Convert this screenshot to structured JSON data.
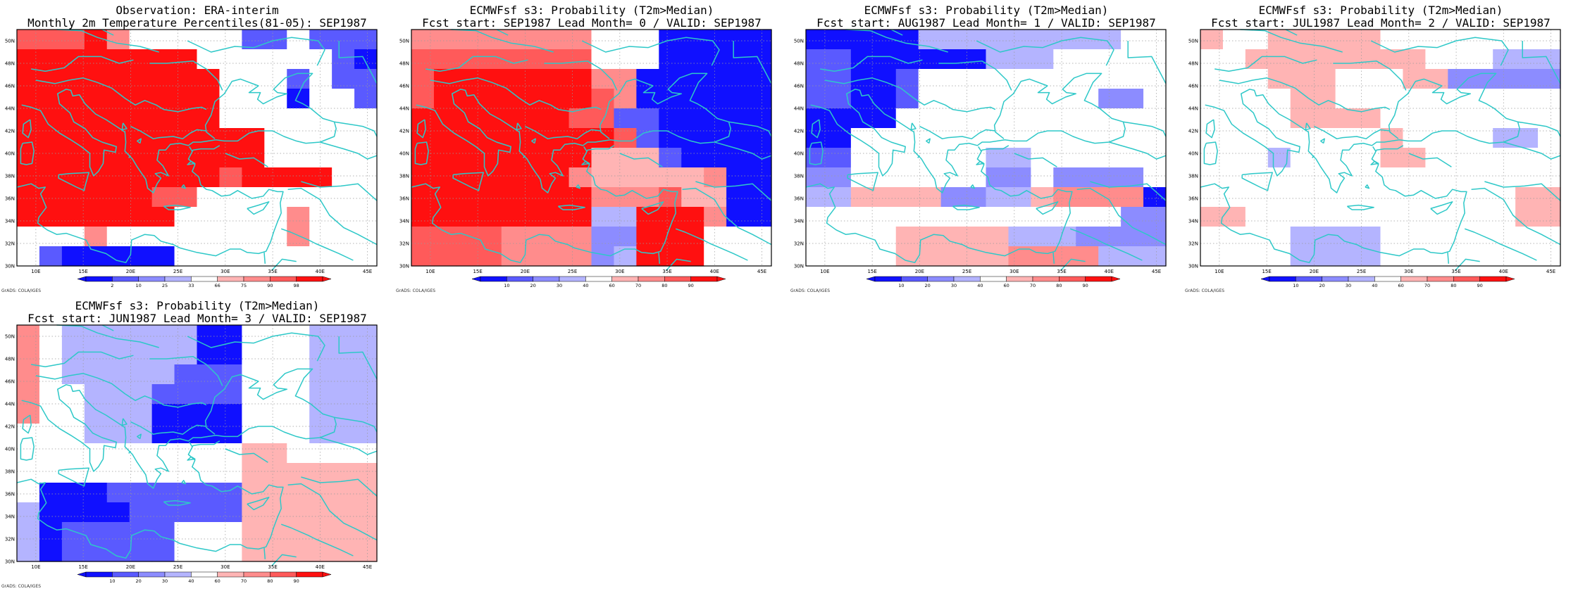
{
  "credit": "GrADS: COLA/IGES",
  "colors": {
    "coast": "#2ec8c8",
    "grid": "#9a9a9a",
    "c_10": "#1010ff",
    "c_20": "#5a5aff",
    "c_30": "#8c8cff",
    "c_40": "#b4b4ff",
    "c_mid": "#ffffff",
    "c_60": "#ffb4b4",
    "c_70": "#ff8c8c",
    "c_80": "#ff5a5a",
    "c_90": "#ff1010"
  },
  "panels": [
    {
      "title1": "Observation: ERA-interim",
      "title2": "Monthly 2m Temperature Percentiles(81-05): SEP1987",
      "colorbar_labels": [
        "2",
        "10",
        "25",
        "33",
        "66",
        "75",
        "90",
        "98"
      ],
      "grid_rows": [
        "8889700000220222",
        "9999999900000021",
        "9999999990002022",
        "9999999990001002",
        "9999999990000000",
        "9999999999900000",
        "9999999999900000",
        "9999999998999900",
        "9999998800000000",
        "9999999000007000",
        "0007000000007000",
        "0211111000000000"
      ]
    },
    {
      "title1": "ECMWFsf s3: Probability (T2m>Median)",
      "title2": "Fcst start: SEP1987  Lead Month= 0 / VALID: SEP1987",
      "colorbar_labels": [
        "10",
        "20",
        "30",
        "40",
        "60",
        "70",
        "80",
        "90"
      ],
      "grid_rows": [
        "7777777700011111",
        "8888888800011111",
        "8999999977111111",
        "8999999987111111",
        "9999999882211111",
        "9999999998211111",
        "9999999966621111",
        "9999999766666711",
        "9999999977786611",
        "9999999944999711",
        "8888777733999000",
        "8888777734999000"
      ]
    },
    {
      "title1": "ECMWFsf s3: Probability (T2m>Median)",
      "title2": "Fcst start: AUG1987  Lead Month= 1 / VALID: SEP1987",
      "colorbar_labels": [
        "10",
        "20",
        "30",
        "40",
        "60",
        "70",
        "80",
        "90"
      ],
      "grid_rows": [
        "1111144444444400",
        "2211111144400000",
        "2211200000000000",
        "2211200000000330",
        "1111000000000000",
        "1100000000000000",
        "2200000044000000",
        "3300000033033330",
        "4466663344677771",
        "0000000000000033",
        "0000666664443333",
        "0000666667777444"
      ]
    },
    {
      "title1": "ECMWFsf s3: Probability (T2m>Median)",
      "title2": "Fcst start: JUL1987  Lead Month= 2 / VALID: SEP1987",
      "colorbar_labels": [
        "10",
        "20",
        "30",
        "40",
        "60",
        "70",
        "80",
        "90"
      ],
      "grid_rows": [
        "6006666600000000",
        "0066666666000444",
        "0006660006633333",
        "0000660000000000",
        "0000666600000000",
        "0000000060000440",
        "0004000066000000",
        "0000000000000000",
        "0000000000000066",
        "6600000000000066",
        "0000444400000000",
        "0000444400000000"
      ]
    },
    {
      "title1": "ECMWFsf s3: Probability (T2m>Median)",
      "title2": "Fcst start: JUN1987  Lead Month= 3 / VALID: SEP1987",
      "colorbar_labels": [
        "10",
        "20",
        "30",
        "40",
        "60",
        "70",
        "80",
        "90"
      ],
      "grid_rows": [
        "7044444411000444",
        "7044444411000444",
        "7044444222000444",
        "7004442222000444",
        "7004441111000444",
        "0004441111000444",
        "0000000000660000",
        "0000000000666666",
        "0111222222666666",
        "4111122222666666",
        "4122222000666666",
        "4122222000666666"
      ]
    }
  ]
}
